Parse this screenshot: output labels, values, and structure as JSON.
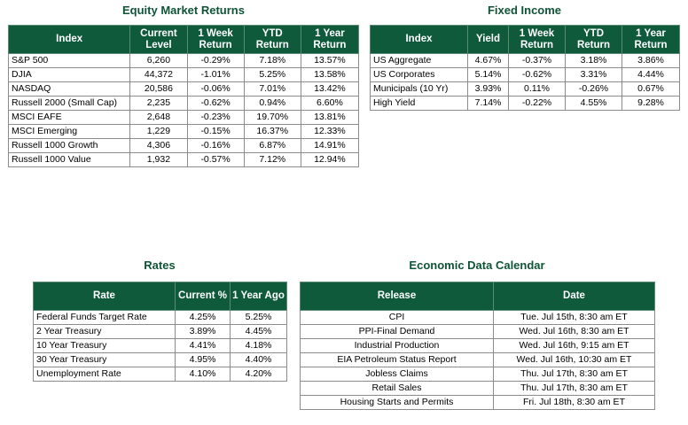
{
  "equity": {
    "title": "Equity Market Returns",
    "headers": [
      "Index",
      "Current Level",
      "1 Week Return",
      "YTD Return",
      "1 Year Return"
    ],
    "rows": [
      [
        "S&P 500",
        "6,260",
        "-0.29%",
        "7.18%",
        "13.57%"
      ],
      [
        "DJIA",
        "44,372",
        "-1.01%",
        "5.25%",
        "13.58%"
      ],
      [
        "NASDAQ",
        "20,586",
        "-0.06%",
        "7.01%",
        "13.42%"
      ],
      [
        "Russell 2000 (Small Cap)",
        "2,235",
        "-0.62%",
        "0.94%",
        "6.60%"
      ],
      [
        "MSCI EAFE",
        "2,648",
        "-0.23%",
        "19.70%",
        "13.81%"
      ],
      [
        "MSCI Emerging",
        "1,229",
        "-0.15%",
        "16.37%",
        "12.33%"
      ],
      [
        "Russell 1000 Growth",
        "4,306",
        "-0.16%",
        "6.87%",
        "14.91%"
      ],
      [
        "Russell 1000 Value",
        "1,932",
        "-0.57%",
        "7.12%",
        "12.94%"
      ]
    ]
  },
  "fixed_income": {
    "title": "Fixed Income",
    "headers": [
      "Index",
      "Yield",
      "1 Week Return",
      "YTD Return",
      "1 Year Return"
    ],
    "rows": [
      [
        "US Aggregate",
        "4.67%",
        "-0.37%",
        "3.18%",
        "3.86%"
      ],
      [
        "US Corporates",
        "5.14%",
        "-0.62%",
        "3.31%",
        "4.44%"
      ],
      [
        "Municipals (10 Yr)",
        "3.93%",
        "0.11%",
        "-0.26%",
        "0.67%"
      ],
      [
        "High Yield",
        "7.14%",
        "-0.22%",
        "4.55%",
        "9.28%"
      ]
    ]
  },
  "rates": {
    "title": "Rates",
    "headers": [
      "Rate",
      "Current %",
      "1 Year Ago"
    ],
    "rows": [
      [
        "Federal Funds Target Rate",
        "4.25%",
        "5.25%"
      ],
      [
        "2 Year Treasury",
        "3.89%",
        "4.45%"
      ],
      [
        "10 Year Treasury",
        "4.41%",
        "4.18%"
      ],
      [
        "30 Year Treasury",
        "4.95%",
        "4.40%"
      ],
      [
        "Unemployment Rate",
        "4.10%",
        "4.20%"
      ]
    ]
  },
  "calendar": {
    "title": "Economic Data Calendar",
    "headers": [
      "Release",
      "Date"
    ],
    "rows": [
      [
        "CPI",
        "Tue. Jul 15th, 8:30 am ET"
      ],
      [
        "PPI-Final Demand",
        "Wed. Jul 16th, 8:30 am ET"
      ],
      [
        "Industrial Production",
        "Wed. Jul 16th, 9:15 am ET"
      ],
      [
        "EIA Petroleum Status Report",
        "Wed. Jul 16th, 10:30 am ET"
      ],
      [
        "Jobless Claims",
        "Thu. Jul 17th, 8:30 am ET"
      ],
      [
        "Retail Sales",
        "Thu. Jul 17th, 8:30 am ET"
      ],
      [
        "Housing Starts and Permits",
        "Fri. Jul 18th, 8:30 am ET"
      ]
    ]
  },
  "colors": {
    "header_bg": "#0e5a3b",
    "title": "#0e5437"
  }
}
